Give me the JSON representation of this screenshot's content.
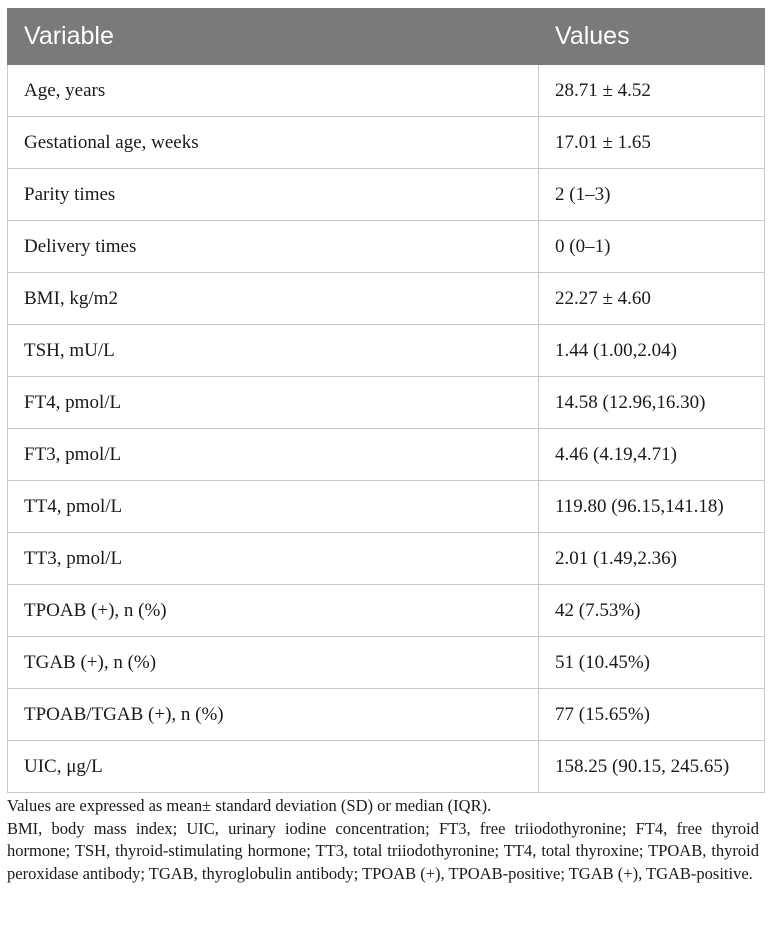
{
  "table": {
    "headers": [
      "Variable",
      "Values"
    ],
    "rows": [
      {
        "variable": "Age, years",
        "value": "28.71 ± 4.52"
      },
      {
        "variable": "Gestational age, weeks",
        "value": "17.01 ± 1.65"
      },
      {
        "variable": "Parity times",
        "value": "2 (1–3)"
      },
      {
        "variable": "Delivery times",
        "value": "0 (0–1)"
      },
      {
        "variable": "BMI, kg/m2",
        "value": "22.27 ± 4.60"
      },
      {
        "variable": "TSH, mU/L",
        "value": "1.44 (1.00,2.04)"
      },
      {
        "variable": "FT4, pmol/L",
        "value": "14.58 (12.96,16.30)"
      },
      {
        "variable": "FT3, pmol/L",
        "value": "4.46 (4.19,4.71)"
      },
      {
        "variable": "TT4, pmol/L",
        "value": "119.80 (96.15,141.18)"
      },
      {
        "variable": "TT3, pmol/L",
        "value": "2.01 (1.49,2.36)"
      },
      {
        "variable": "TPOAB (+), n (%)",
        "value": "42 (7.53%)"
      },
      {
        "variable": "TGAB (+), n (%)",
        "value": "51 (10.45%)"
      },
      {
        "variable": "TPOAB/TGAB (+), n (%)",
        "value": "77 (15.65%)"
      },
      {
        "variable": "UIC, μg/L",
        "value": "158.25 (90.15, 245.65)"
      }
    ]
  },
  "footnotes": {
    "note1": "Values are expressed as mean± standard deviation (SD) or median (IQR).",
    "note2": "BMI, body mass index; UIC, urinary iodine concentration; FT3, free triiodothyronine; FT4, free thyroid hormone; TSH, thyroid-stimulating hormone; TT3, total triiodothyronine; TT4, total thyroxine; TPOAB, thyroid peroxidase antibody; TGAB, thyroglobulin antibody; TPOAB (+), TPOAB-positive; TGAB (+), TGAB-positive."
  },
  "colors": {
    "header_bg": "#7a7a7a",
    "header_text": "#ffffff",
    "grid": "#c8c8c8"
  }
}
